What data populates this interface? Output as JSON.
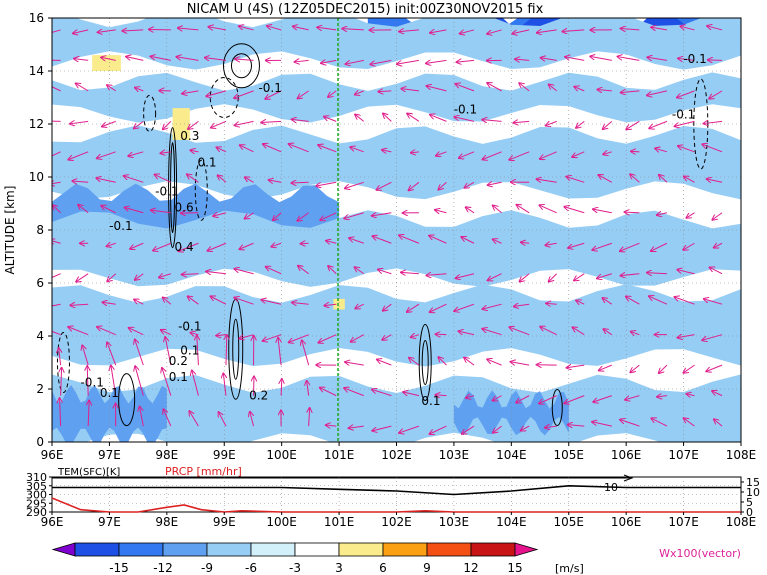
{
  "title": "NICAM U (4S) (12Z05DEC2015) init:00Z30NOV2015 fix",
  "main_panel": {
    "ylabel": "ALTITUDE [km]",
    "x_ticks": [
      "96E",
      "97E",
      "98E",
      "99E",
      "100E",
      "101E",
      "102E",
      "103E",
      "104E",
      "105E",
      "106E",
      "107E",
      "108E"
    ],
    "y_ticks": [
      "0",
      "2",
      "4",
      "6",
      "8",
      "10",
      "12",
      "14",
      "16"
    ],
    "contour_labels": [
      "-0.1",
      "-0.1",
      "0.1",
      "-0.1",
      "-0.1",
      "0.1",
      "0.2",
      "0.4",
      "0.6",
      "0.3",
      "0.1",
      "-0.1",
      "-0.1",
      "0.2",
      "0.1",
      "0.1",
      "-0.1",
      "-0.1"
    ]
  },
  "sub_panel": {
    "temp_label": "TEM(SFC)[K]",
    "prcp_label": "PRCP [mm/hr]",
    "left_ticks": [
      "310",
      "305",
      "300",
      "295",
      "290"
    ],
    "right_ticks": [
      "15",
      "10",
      "5",
      "0"
    ],
    "line_label": "10",
    "x_ticks": [
      "96E",
      "97E",
      "98E",
      "99E",
      "100E",
      "101E",
      "102E",
      "103E",
      "104E",
      "105E",
      "106E",
      "107E",
      "108E"
    ]
  },
  "colorbar": {
    "ticks": [
      "-15",
      "-12",
      "-9",
      "-6",
      "-3",
      "3",
      "6",
      "9",
      "12",
      "15"
    ],
    "unit": "[m/s]",
    "vector_label": "Wx100(vector)",
    "colors": [
      "#8000d0",
      "#1e50e6",
      "#3278f0",
      "#60a0f0",
      "#96cdf5",
      "#d2f0fa",
      "#ffffff",
      "#faeb8c",
      "#faa014",
      "#f55014",
      "#c81414",
      "#e6148c"
    ]
  },
  "chart_data": [
    {
      "type": "heatmap",
      "title": "NICAM U (4S) (12Z05DEC2015) init:00Z30NOV2015 fix",
      "x_range": [
        96,
        108
      ],
      "y_range": [
        0,
        16
      ],
      "ylabel": "ALTITUDE [km]",
      "shading_variable": "U [m/s]",
      "vector_variable": "Wx100(vector)",
      "contour_variable": "W",
      "vertical_marker_x": 101
    },
    {
      "type": "line",
      "x_range": [
        96,
        108
      ],
      "series": [
        {
          "name": "TEM(SFC)[K]",
          "axis": "left",
          "ylim": [
            290,
            310
          ],
          "x": [
            96,
            97,
            98,
            99,
            100,
            101,
            102,
            103,
            104,
            105,
            106,
            107,
            108
          ],
          "values": [
            304,
            304,
            304,
            304,
            304,
            303,
            302,
            300,
            302,
            305,
            304,
            304,
            304
          ]
        },
        {
          "name": "PRCP [mm/hr]",
          "axis": "right",
          "ylim": [
            0,
            15
          ],
          "x": [
            96,
            96.5,
            97,
            97.5,
            98,
            98.3,
            98.6,
            99,
            99.3,
            100,
            102,
            102.5,
            103,
            104,
            108
          ],
          "values": [
            6,
            1,
            0,
            0,
            2,
            3,
            1,
            0,
            0.5,
            0,
            0,
            0.5,
            0,
            0,
            0
          ]
        }
      ]
    }
  ]
}
